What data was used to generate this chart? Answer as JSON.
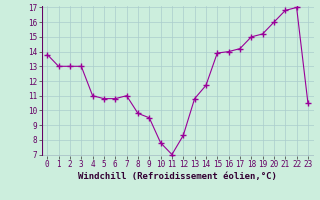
{
  "x": [
    0,
    1,
    2,
    3,
    4,
    5,
    6,
    7,
    8,
    9,
    10,
    11,
    12,
    13,
    14,
    15,
    16,
    17,
    18,
    19,
    20,
    21,
    22,
    23
  ],
  "y": [
    13.8,
    13.0,
    13.0,
    13.0,
    11.0,
    10.8,
    10.8,
    11.0,
    9.8,
    9.5,
    7.8,
    7.0,
    8.3,
    10.8,
    11.7,
    13.9,
    14.0,
    14.2,
    15.0,
    15.2,
    16.0,
    16.8,
    17.0,
    10.5
  ],
  "line_color": "#990099",
  "marker": "+",
  "marker_size": 4,
  "bg_color": "#cceedd",
  "grid_color": "#aacccc",
  "xlabel": "Windchill (Refroidissement éolien,°C)",
  "ylim": [
    7,
    17
  ],
  "xlim": [
    -0.5,
    23.5
  ],
  "yticks": [
    7,
    8,
    9,
    10,
    11,
    12,
    13,
    14,
    15,
    16,
    17
  ],
  "xticks": [
    0,
    1,
    2,
    3,
    4,
    5,
    6,
    7,
    8,
    9,
    10,
    11,
    12,
    13,
    14,
    15,
    16,
    17,
    18,
    19,
    20,
    21,
    22,
    23
  ],
  "xlabel_fontsize": 6.5,
  "tick_fontsize": 5.5,
  "title_fontsize": 6
}
